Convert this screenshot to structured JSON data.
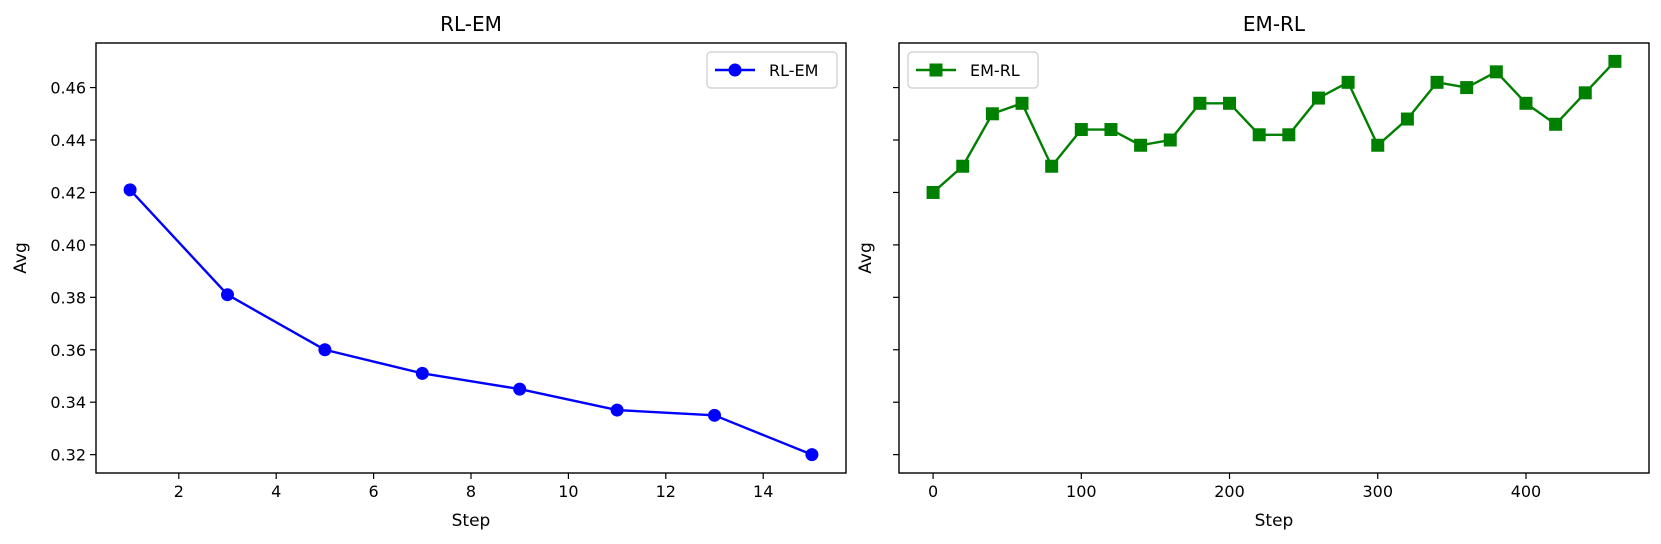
{
  "chart_data": [
    {
      "type": "line",
      "title": "RL-EM",
      "xlabel": "Step",
      "ylabel": "Avg",
      "xlim": [
        0.3,
        15.7
      ],
      "ylim": [
        0.313,
        0.477
      ],
      "xticks": [
        2,
        4,
        6,
        8,
        10,
        12,
        14
      ],
      "yticks": [
        0.32,
        0.34,
        0.36,
        0.38,
        0.4,
        0.42,
        0.44,
        0.46
      ],
      "ytick_labels_shown": true,
      "grid": false,
      "legend_position": "top-right",
      "series": [
        {
          "name": "RL-EM",
          "color": "#0000ff",
          "marker": "circle",
          "x": [
            1,
            3,
            5,
            7,
            9,
            11,
            13,
            15
          ],
          "y": [
            0.421,
            0.381,
            0.36,
            0.351,
            0.345,
            0.337,
            0.335,
            0.32
          ]
        }
      ]
    },
    {
      "type": "line",
      "title": "EM-RL",
      "xlabel": "Step",
      "ylabel": "Avg",
      "xlim": [
        -23,
        483
      ],
      "ylim": [
        0.313,
        0.477
      ],
      "xticks": [
        0,
        100,
        200,
        300,
        400
      ],
      "yticks": [
        0.32,
        0.34,
        0.36,
        0.38,
        0.4,
        0.42,
        0.44,
        0.46
      ],
      "ytick_labels_shown": false,
      "grid": false,
      "legend_position": "top-left",
      "series": [
        {
          "name": "EM-RL",
          "color": "#008000",
          "marker": "square",
          "x": [
            0,
            20,
            40,
            60,
            80,
            100,
            120,
            140,
            160,
            180,
            200,
            220,
            240,
            260,
            280,
            300,
            320,
            340,
            360,
            380,
            400,
            420,
            440,
            460
          ],
          "y": [
            0.42,
            0.43,
            0.45,
            0.454,
            0.43,
            0.444,
            0.444,
            0.438,
            0.44,
            0.454,
            0.454,
            0.442,
            0.442,
            0.456,
            0.462,
            0.438,
            0.448,
            0.462,
            0.46,
            0.466,
            0.454,
            0.446,
            0.458,
            0.47
          ]
        }
      ]
    }
  ]
}
